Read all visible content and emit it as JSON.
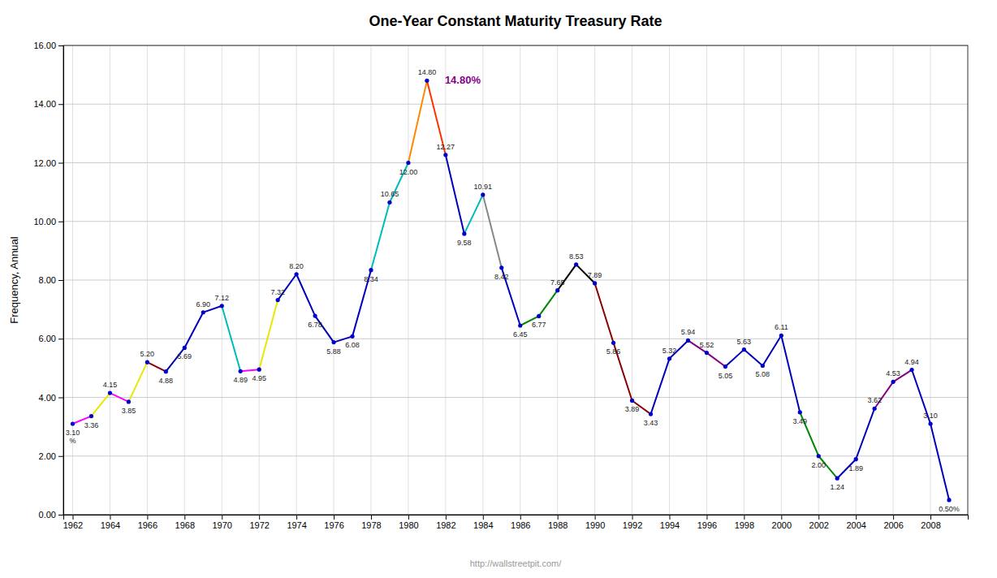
{
  "chart_data": {
    "type": "line",
    "title": "One-Year Constant Maturity Treasury Rate",
    "ylabel": "Frequency, Annual",
    "x": [
      1962,
      1963,
      1964,
      1965,
      1966,
      1967,
      1968,
      1969,
      1970,
      1971,
      1972,
      1973,
      1974,
      1975,
      1976,
      1977,
      1978,
      1979,
      1980,
      1981,
      1982,
      1983,
      1984,
      1985,
      1986,
      1987,
      1988,
      1989,
      1990,
      1991,
      1992,
      1993,
      1994,
      1995,
      1996,
      1997,
      1998,
      1999,
      2000,
      2001,
      2002,
      2003,
      2004,
      2005,
      2006,
      2007,
      2008,
      2009
    ],
    "values": [
      3.1,
      3.36,
      4.15,
      3.85,
      5.2,
      4.88,
      5.69,
      6.9,
      7.12,
      4.89,
      4.95,
      7.32,
      8.2,
      6.78,
      5.88,
      6.08,
      8.34,
      10.65,
      12.0,
      14.8,
      12.27,
      9.58,
      10.91,
      8.42,
      6.45,
      6.77,
      7.65,
      8.53,
      7.89,
      5.86,
      3.89,
      3.43,
      5.32,
      5.94,
      5.52,
      5.05,
      5.63,
      5.08,
      6.11,
      3.49,
      2.0,
      1.24,
      1.89,
      3.62,
      4.53,
      4.94,
      3.1,
      0.5
    ],
    "value_labels": [
      "3.10\n%",
      "3.36",
      "4.15",
      "3.85",
      "5.20",
      "4.88",
      "5.69",
      "6.90",
      "7.12",
      "4.89",
      "4.95",
      "7.32",
      "8.20",
      "6.78",
      "5.88",
      "6.08",
      "8.34",
      "10.65",
      "12.00",
      "14.80",
      "12.27",
      "9.58",
      "10.91",
      "8.42",
      "6.45",
      "6.77",
      "7.65",
      "8.53",
      "7.89",
      "5.86",
      "3.89",
      "3.43",
      "5.32",
      "5.94",
      "5.52",
      "5.05",
      "5.63",
      "5.08",
      "6.11",
      "3.49",
      "2.00",
      "1.24",
      "1.89",
      "3.62",
      "4.53",
      "4.94",
      "3.10",
      "0.50%"
    ],
    "data_labels": true,
    "marker": "circle",
    "color": "#0000cc",
    "colors": [
      "#ff00ff",
      "#e8e800",
      "#ff00ff",
      "#e8e800",
      "#880000",
      "#0000bb",
      "#0000bb",
      "#0000bb",
      "#00bbbb",
      "#ff00ff",
      "#e8e800",
      "#0000bb",
      "#0000bb",
      "#0000bb",
      "#0000bb",
      "#0000bb",
      "#00bbbb",
      "#00bbbb",
      "#ff8800",
      "#ff3300",
      "#0000bb",
      "#00bbbb",
      "#888888",
      "#0000bb",
      "#008800",
      "#008800",
      "#000000",
      "#000000",
      "#880000",
      "#880000",
      "#880000",
      "#0000bb",
      "#0000bb",
      "#880088",
      "#880088",
      "#0000bb",
      "#0000bb",
      "#0000bb",
      "#0000bb",
      "#008800",
      "#008800",
      "#0000bb",
      "#0000bb",
      "#880088",
      "#880088",
      "#0000bb",
      "#0000bb"
    ],
    "xlim": [
      1961.5,
      2010.0
    ],
    "xticks": [
      1962,
      1964,
      1966,
      1968,
      1970,
      1972,
      1974,
      1976,
      1978,
      1980,
      1982,
      1984,
      1986,
      1988,
      1990,
      1992,
      1994,
      1996,
      1998,
      2000,
      2002,
      2004,
      2006,
      2008
    ],
    "ylim": [
      0.0,
      16.0
    ],
    "yticks": [
      {
        "value": 0,
        "label": "0.00"
      },
      {
        "value": 2,
        "label": "2.00"
      },
      {
        "value": 4,
        "label": "4.00"
      },
      {
        "value": 6,
        "label": "6.00"
      },
      {
        "value": 8,
        "label": "8.00"
      },
      {
        "value": 10,
        "label": "10.00"
      },
      {
        "value": 12,
        "label": "12.00"
      },
      {
        "value": 14,
        "label": "14.00"
      },
      {
        "value": 16,
        "label": "16.00"
      }
    ],
    "grid": true,
    "annotations": [
      {
        "text": "14.80%",
        "x": 1981,
        "y": 14.8,
        "color": "#880088"
      },
      {
        "text": "http://wallstreetpit.com/"
      }
    ]
  }
}
